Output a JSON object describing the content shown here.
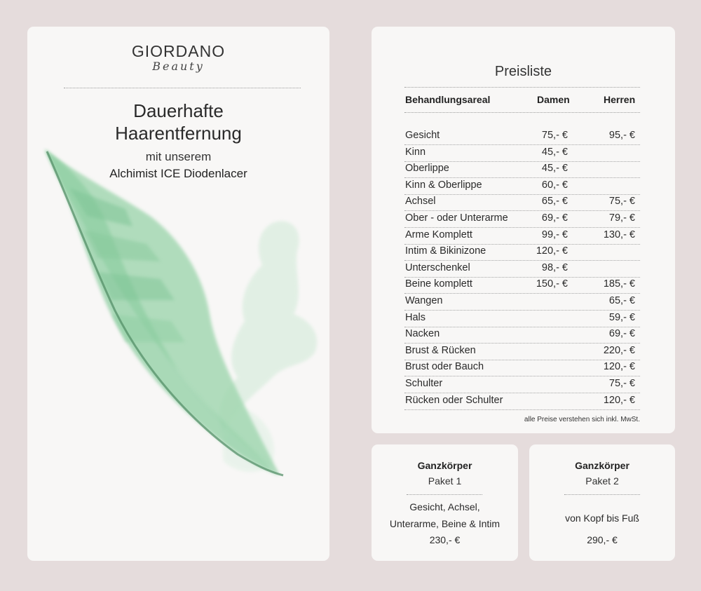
{
  "brand": {
    "name": "GIORDANO",
    "subtitle": "Beauty"
  },
  "intro": {
    "headline_line1": "Dauerhafte",
    "headline_line2": "Haarentfernung",
    "sub1": "mit unserem",
    "sub2": "Alchimist ICE Diodenlacer"
  },
  "price_list": {
    "title": "Preisliste",
    "headers": {
      "area": "Behandlungsareal",
      "women": "Damen",
      "men": "Herren"
    },
    "rows": [
      {
        "area": "Gesicht",
        "women": "75,- €",
        "men": "95,- €"
      },
      {
        "area": "Kinn",
        "women": "45,- €",
        "men": ""
      },
      {
        "area": "Oberlippe",
        "women": "45,- €",
        "men": ""
      },
      {
        "area": "Kinn & Oberlippe",
        "women": "60,- €",
        "men": ""
      },
      {
        "area": "Achsel",
        "women": "65,- €",
        "men": "75,- €"
      },
      {
        "area": "Ober - oder Unterarme",
        "women": "69,- €",
        "men": "79,- €"
      },
      {
        "area": "Arme Komplett",
        "women": "99,- €",
        "men": "130,- €"
      },
      {
        "area": "Intim & Bikinizone",
        "women": "120,- €",
        "men": ""
      },
      {
        "area": "Unterschenkel",
        "women": "98,- €",
        "men": ""
      },
      {
        "area": "Beine komplett",
        "women": "150,- €",
        "men": "185,- €"
      },
      {
        "area": "Wangen",
        "women": "",
        "men": "65,- €"
      },
      {
        "area": "Hals",
        "women": "",
        "men": "59,- €"
      },
      {
        "area": "Nacken",
        "women": "",
        "men": "69,- €"
      },
      {
        "area": "Brust & Rücken",
        "women": "",
        "men": "220,- €"
      },
      {
        "area": "Brust oder Bauch",
        "women": "",
        "men": "120,- €"
      },
      {
        "area": "Schulter",
        "women": "",
        "men": "75,- €"
      },
      {
        "area": "Rücken oder Schulter",
        "women": "",
        "men": "120,- €"
      }
    ],
    "note": "alle Preise verstehen sich inkl. MwSt."
  },
  "packages": [
    {
      "title": "Ganzkörper",
      "name": "Paket 1",
      "desc_line1": "Gesicht, Achsel,",
      "desc_line2": "Unterarme, Beine & Intim",
      "price": "230,- €"
    },
    {
      "title": "Ganzkörper",
      "name": "Paket 2",
      "desc_line1": "von Kopf bis Fuß",
      "desc_line2": "",
      "price": "290,- €"
    }
  ],
  "colors": {
    "background": "#e5dcdc",
    "card": "#f8f7f6",
    "leaf": "#8fcfa3",
    "leaf_stem": "#4f8a62"
  },
  "icons": {
    "decoration": "watercolor-leaf-illustration"
  }
}
